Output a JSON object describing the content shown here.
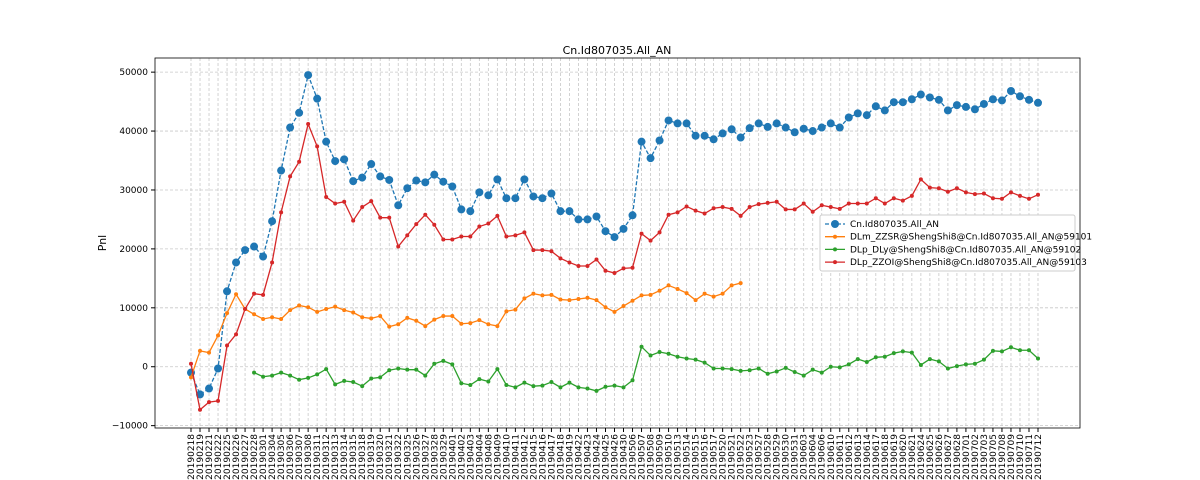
{
  "chart_data": {
    "type": "line",
    "title": "Cn.Id807035.All_AN",
    "y_label": "Pnl",
    "categories": [
      "20190218",
      "20190219",
      "20190221",
      "20190222",
      "20190225",
      "20190226",
      "20190227",
      "20190228",
      "20190301",
      "20190304",
      "20190305",
      "20190306",
      "20190307",
      "20190308",
      "20190311",
      "20190312",
      "20190313",
      "20190314",
      "20190315",
      "20190318",
      "20190319",
      "20190320",
      "20190321",
      "20190322",
      "20190325",
      "20190326",
      "20190327",
      "20190328",
      "20190329",
      "20190401",
      "20190402",
      "20190403",
      "20190404",
      "20190408",
      "20190409",
      "20190410",
      "20190411",
      "20190412",
      "20190415",
      "20190416",
      "20190417",
      "20190418",
      "20190419",
      "20190422",
      "20190423",
      "20190424",
      "20190425",
      "20190426",
      "20190430",
      "20190506",
      "20190507",
      "20190508",
      "20190509",
      "20190510",
      "20190513",
      "20190514",
      "20190515",
      "20190516",
      "20190517",
      "20190520",
      "20190521",
      "20190522",
      "20190523",
      "20190527",
      "20190528",
      "20190529",
      "20190530",
      "20190531",
      "20190603",
      "20190604",
      "20190606",
      "20190610",
      "20190611",
      "20190612",
      "20190613",
      "20190614",
      "20190617",
      "20190618",
      "20190619",
      "20190620",
      "20190621",
      "20190624",
      "20190625",
      "20190626",
      "20190627",
      "20190628",
      "20190701",
      "20190702",
      "20190703",
      "20190705",
      "20190708",
      "20190709",
      "20190710",
      "20190711",
      "20190712"
    ],
    "series": [
      {
        "name": "Cn.Id807035.All_AN",
        "color": "#1f77b4",
        "linestyle": "dashed",
        "values": [
          -1000,
          -4700,
          -3700,
          -300,
          12800,
          17700,
          19800,
          20400,
          18700,
          24700,
          33300,
          40600,
          43100,
          49500,
          45500,
          38200,
          34900,
          35200,
          31500,
          32100,
          34400,
          32300,
          31700,
          27400,
          30300,
          31600,
          31300,
          32600,
          31400,
          30600,
          26700,
          26400,
          29600,
          29100,
          31800,
          28600,
          28600,
          31800,
          28900,
          28600,
          29400,
          26400,
          26400,
          25000,
          25000,
          25500,
          23000,
          22000,
          23400,
          25700,
          38200,
          35400,
          38400,
          41800,
          41300,
          41300,
          39200,
          39200,
          38600,
          39600,
          40300,
          38900,
          40500,
          41300,
          40700,
          41300,
          40600,
          39800,
          40400,
          40000,
          40600,
          41300,
          40600,
          42300,
          43000,
          42700,
          44200,
          43500,
          44900,
          44900,
          45400,
          46200,
          45700,
          45300,
          43500,
          44400,
          44100,
          43700,
          44600,
          45400,
          45200,
          46800,
          45900,
          45300,
          44800
        ]
      },
      {
        "name": "DLm_ZZSR@ShengShi8@Cn.Id807035.All_AN@59101",
        "color": "#ff7f0e",
        "linestyle": "solid",
        "values": [
          -1800,
          2700,
          2400,
          5300,
          9100,
          12300,
          9800,
          8900,
          8100,
          8400,
          8100,
          9600,
          10400,
          10100,
          9300,
          9800,
          10200,
          9600,
          9200,
          8400,
          8200,
          8600,
          6800,
          7200,
          8300,
          7800,
          6900,
          8000,
          8600,
          8600,
          7300,
          7400,
          7900,
          7200,
          6900,
          9400,
          9700,
          11600,
          12400,
          12100,
          12200,
          11400,
          11300,
          11500,
          11700,
          11300,
          10100,
          9300,
          10300,
          11200,
          12100,
          12200,
          12900,
          13800,
          13200,
          12500,
          11300,
          12400,
          11900,
          12400,
          13800,
          14200,
          null,
          null,
          null,
          null,
          null,
          null,
          null,
          null,
          null,
          null,
          null,
          null,
          null,
          null,
          null,
          null,
          null,
          null,
          null,
          null,
          null,
          null,
          null,
          null,
          null,
          null,
          null,
          null,
          null,
          null,
          null,
          null,
          null
        ]
      },
      {
        "name": "DLp_DLy@ShengShi8@Cn.Id807035.All_AN@59102",
        "color": "#2ca02c",
        "linestyle": "solid",
        "values": [
          null,
          null,
          null,
          null,
          null,
          null,
          null,
          -1000,
          -1700,
          -1500,
          -1000,
          -1500,
          -2200,
          -1900,
          -1300,
          -400,
          -3000,
          -2400,
          -2600,
          -3300,
          -2000,
          -1800,
          -600,
          -300,
          -500,
          -500,
          -1500,
          500,
          1000,
          400,
          -2800,
          -3100,
          -2100,
          -2500,
          -400,
          -3100,
          -3500,
          -2700,
          -3300,
          -3200,
          -2600,
          -3500,
          -2700,
          -3500,
          -3700,
          -4100,
          -3400,
          -3200,
          -3500,
          -2300,
          3400,
          1900,
          2500,
          2200,
          1700,
          1400,
          1200,
          700,
          -300,
          -300,
          -400,
          -700,
          -600,
          -300,
          -1200,
          -800,
          -200,
          -900,
          -1500,
          -500,
          -1000,
          0,
          -100,
          400,
          1300,
          800,
          1600,
          1700,
          2300,
          2600,
          2400,
          300,
          1300,
          900,
          -300,
          100,
          400,
          500,
          1200,
          2700,
          2600,
          3300,
          2800,
          2800,
          1400
        ]
      },
      {
        "name": "DLp_ZZOI@ShengShi8@Cn.Id807035.All_AN@59103",
        "color": "#d62728",
        "linestyle": "solid",
        "values": [
          500,
          -7300,
          -6000,
          -5800,
          3600,
          5500,
          9800,
          12400,
          12200,
          17700,
          26200,
          32300,
          34800,
          41200,
          37400,
          28800,
          27700,
          28000,
          24800,
          27100,
          28100,
          25300,
          25300,
          20400,
          22300,
          24200,
          25800,
          24100,
          21600,
          21600,
          22100,
          22100,
          23800,
          24300,
          25600,
          22100,
          22300,
          22800,
          19800,
          19800,
          19600,
          18400,
          17700,
          17100,
          17100,
          18200,
          16300,
          15900,
          16700,
          16800,
          22600,
          21400,
          22800,
          25800,
          26200,
          27200,
          26500,
          26000,
          26900,
          27100,
          26800,
          25600,
          27100,
          27600,
          27800,
          28000,
          26700,
          26700,
          27700,
          26300,
          27400,
          27100,
          26800,
          27700,
          27700,
          27700,
          28600,
          27700,
          28600,
          28200,
          29000,
          31800,
          30400,
          30300,
          29700,
          30300,
          29600,
          29300,
          29400,
          28600,
          28500,
          29600,
          29000,
          28500,
          29200
        ]
      }
    ],
    "ylim": [
      -10400,
      52400
    ],
    "yticks": [
      {
        "value": -10000,
        "label": "−10000"
      },
      0,
      10000,
      20000,
      30000,
      40000,
      50000
    ],
    "grid": true,
    "legend": "center right"
  }
}
